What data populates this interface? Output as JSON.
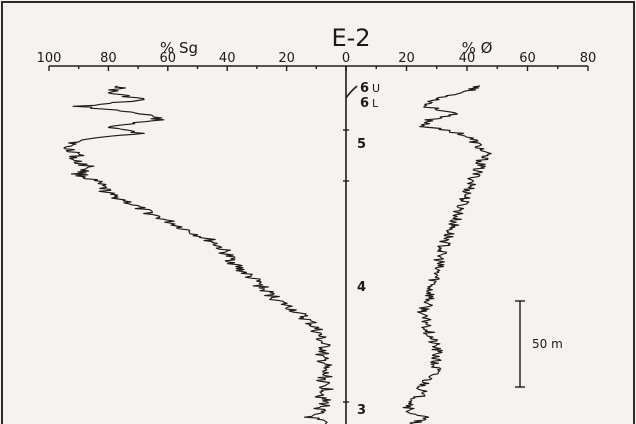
{
  "chart_data": {
    "type": "line",
    "title": "E-2",
    "left_axis": {
      "label": "% Sg",
      "ticks": [
        "100",
        "80",
        "60",
        "40",
        "20",
        "0"
      ],
      "range": [
        100,
        0
      ]
    },
    "right_axis": {
      "label": "% Ø",
      "ticks": [
        "0",
        "20",
        "40",
        "60",
        "80"
      ],
      "range": [
        0,
        80
      ]
    },
    "unit_labels": [
      {
        "main": "6",
        "sub": "U"
      },
      {
        "main": "6",
        "sub": "L"
      },
      {
        "main": "5",
        "sub": ""
      },
      {
        "main": "4",
        "sub": ""
      },
      {
        "main": "3",
        "sub": ""
      }
    ],
    "scale_bar_label": "50 m",
    "series": [
      {
        "values": [
          [
            0.0,
            75
          ],
          [
            0.02,
            80
          ],
          [
            0.04,
            68
          ],
          [
            0.06,
            90
          ],
          [
            0.08,
            70
          ],
          [
            0.1,
            62
          ],
          [
            0.12,
            80
          ],
          [
            0.14,
            70
          ],
          [
            0.16,
            88
          ],
          [
            0.18,
            95
          ],
          [
            0.2,
            90
          ],
          [
            0.22,
            92
          ],
          [
            0.24,
            86
          ],
          [
            0.26,
            90
          ],
          [
            0.28,
            85
          ],
          [
            0.3,
            82
          ],
          [
            0.32,
            80
          ],
          [
            0.34,
            74
          ],
          [
            0.36,
            70
          ],
          [
            0.38,
            65
          ],
          [
            0.4,
            60
          ],
          [
            0.42,
            55
          ],
          [
            0.44,
            50
          ],
          [
            0.46,
            45
          ],
          [
            0.48,
            42
          ],
          [
            0.5,
            40
          ],
          [
            0.52,
            38
          ],
          [
            0.54,
            36
          ],
          [
            0.56,
            33
          ],
          [
            0.58,
            30
          ],
          [
            0.6,
            28
          ],
          [
            0.62,
            25
          ],
          [
            0.64,
            22
          ],
          [
            0.66,
            18
          ],
          [
            0.68,
            15
          ],
          [
            0.7,
            12
          ],
          [
            0.72,
            10
          ],
          [
            0.74,
            9
          ],
          [
            0.76,
            8
          ],
          [
            0.78,
            7
          ],
          [
            0.8,
            9
          ],
          [
            0.82,
            7
          ],
          [
            0.84,
            8
          ],
          [
            0.86,
            7
          ],
          [
            0.88,
            8
          ],
          [
            0.9,
            6
          ],
          [
            0.92,
            8
          ],
          [
            0.94,
            7
          ],
          [
            0.96,
            9
          ],
          [
            0.98,
            12
          ],
          [
            1.0,
            7
          ]
        ]
      },
      {
        "values": [
          [
            0.0,
            45
          ],
          [
            0.02,
            38
          ],
          [
            0.04,
            30
          ],
          [
            0.06,
            26
          ],
          [
            0.08,
            36
          ],
          [
            0.1,
            28
          ],
          [
            0.12,
            26
          ],
          [
            0.14,
            38
          ],
          [
            0.16,
            42
          ],
          [
            0.18,
            44
          ],
          [
            0.2,
            46
          ],
          [
            0.22,
            45
          ],
          [
            0.24,
            44
          ],
          [
            0.26,
            43
          ],
          [
            0.28,
            42
          ],
          [
            0.3,
            41
          ],
          [
            0.32,
            40
          ],
          [
            0.34,
            39
          ],
          [
            0.36,
            38
          ],
          [
            0.38,
            37
          ],
          [
            0.4,
            36
          ],
          [
            0.42,
            35
          ],
          [
            0.44,
            34
          ],
          [
            0.46,
            33
          ],
          [
            0.48,
            32
          ],
          [
            0.5,
            31
          ],
          [
            0.52,
            31
          ],
          [
            0.54,
            30
          ],
          [
            0.56,
            30
          ],
          [
            0.58,
            29
          ],
          [
            0.6,
            28
          ],
          [
            0.62,
            28
          ],
          [
            0.64,
            27
          ],
          [
            0.66,
            26
          ],
          [
            0.68,
            25
          ],
          [
            0.7,
            27
          ],
          [
            0.72,
            27
          ],
          [
            0.74,
            28
          ],
          [
            0.76,
            29
          ],
          [
            0.78,
            30
          ],
          [
            0.8,
            30
          ],
          [
            0.82,
            29
          ],
          [
            0.84,
            30
          ],
          [
            0.86,
            28
          ],
          [
            0.88,
            26
          ],
          [
            0.9,
            25
          ],
          [
            0.92,
            24
          ],
          [
            0.94,
            22
          ],
          [
            0.96,
            20
          ],
          [
            0.98,
            26
          ],
          [
            1.0,
            22
          ]
        ]
      }
    ]
  }
}
